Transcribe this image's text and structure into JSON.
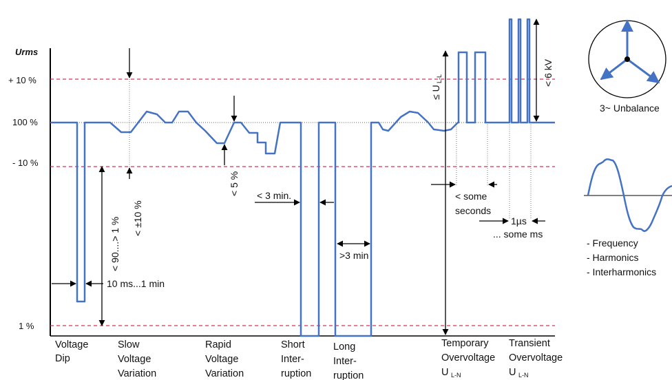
{
  "axis": {
    "title": "Urms",
    "ticks": [
      "+ 10 %",
      "100 %",
      "- 10 %",
      "1 %"
    ]
  },
  "colors": {
    "waveform": "#4472c4",
    "limit_line": "#d9304f",
    "reference_line": "#333333",
    "annotation": "#000000"
  },
  "annotations": {
    "dip_depth": "< 90....> 1 %",
    "dip_duration": "10 ms...1 min",
    "slow_range": "< ±10 %",
    "rapid_step": "< 5 %",
    "short_duration": "< 3 min.",
    "long_duration": ">3 min",
    "ull": "≤ U",
    "ull_sub": "L-L",
    "six_kv": "< 6 kV",
    "some": "< some",
    "seconds": "seconds",
    "one_us": "1µs",
    "some_ms": "... some ms"
  },
  "categories": [
    {
      "line1": "Voltage",
      "line2": "Dip",
      "line3": ""
    },
    {
      "line1": "Slow",
      "line2": "Voltage",
      "line3": "Variation"
    },
    {
      "line1": "Rapid",
      "line2": "Voltage",
      "line3": "Variation"
    },
    {
      "line1": "Short",
      "line2": "Inter-",
      "line3": "ruption"
    },
    {
      "line1": "Long",
      "line2": "Inter-",
      "line3": "ruption"
    },
    {
      "line1": "Temporary",
      "line2": "Overvoltage",
      "line3": "U",
      "line3_sub": "L-N"
    },
    {
      "line1": "Transient",
      "line2": "Overvoltage",
      "line3": "U",
      "line3_sub": "L-N"
    }
  ],
  "side": {
    "unbalance": "3~ Unbalance",
    "items": [
      "- Frequency",
      "- Harmonics",
      "- Interharmonics"
    ]
  }
}
